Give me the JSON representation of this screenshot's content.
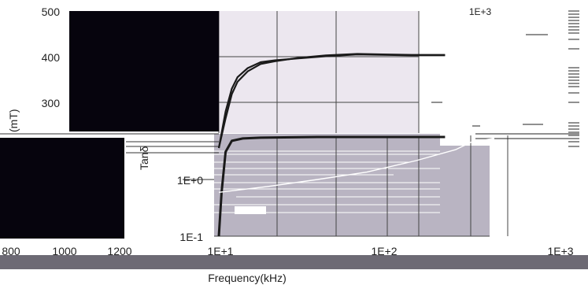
{
  "colors": {
    "upper_plot_bg": "#ece7ef",
    "lower_plot_bg": "#b9b4c2",
    "occluder": "#06040d",
    "grid": "#444444",
    "curve": "#1a1a1a",
    "baseline_bar": "#6d6a74"
  },
  "left_panel": {
    "y_ticks": [
      "500",
      "400",
      "300"
    ],
    "y_label_fragment": "(mT)",
    "x_ticks": [
      "800",
      "1000",
      "1200"
    ]
  },
  "main_plot": {
    "y_ticks": [
      "1E+0",
      "1E-1"
    ],
    "y_label": "Tanδ",
    "x_ticks": [
      "1E+1",
      "1E+2",
      "1E+3"
    ],
    "x_label": "Frequency(kHz)",
    "right_top_tick": "1E+3"
  },
  "chart_data": [
    {
      "type": "line",
      "title": "",
      "xlabel": "Frequency(kHz)",
      "ylabel": "(mT)",
      "x_scale": "log",
      "xlim": [
        10,
        1000
      ],
      "ylim": [
        200,
        500
      ],
      "grid": true,
      "series": [
        {
          "x": [
            10,
            11,
            12,
            13,
            15,
            18,
            22,
            30,
            45,
            70,
            100,
            150,
            240
          ],
          "values": [
            200,
            280,
            330,
            355,
            375,
            388,
            392,
            396,
            401,
            405,
            404,
            403,
            403
          ]
        },
        {
          "x": [
            10,
            11,
            12,
            13,
            15,
            18,
            22,
            30,
            45,
            70,
            100,
            150,
            240
          ],
          "values": [
            200,
            265,
            318,
            345,
            368,
            384,
            390,
            397,
            403,
            406,
            405,
            404,
            404
          ]
        }
      ]
    },
    {
      "type": "line",
      "title": "",
      "xlabel": "Frequency(kHz)",
      "ylabel": "Tanδ",
      "x_scale": "log",
      "y_scale": "log",
      "xlim": [
        10,
        1000
      ],
      "ylim": [
        0.1,
        10
      ],
      "grid": true,
      "series": [
        {
          "x": [
            10,
            10.4,
            11,
            12,
            14,
            18,
            25,
            40,
            70,
            120,
            240
          ],
          "values": [
            0.1,
            0.5,
            2.2,
            3.3,
            3.6,
            3.7,
            3.75,
            3.8,
            3.8,
            3.8,
            3.8
          ]
        },
        {
          "x": [
            10,
            20,
            40,
            80,
            160,
            280,
            360,
            480
          ],
          "values": [
            0.5,
            0.62,
            0.8,
            1.05,
            1.6,
            2.4,
            3.3,
            3.6
          ]
        }
      ]
    }
  ]
}
